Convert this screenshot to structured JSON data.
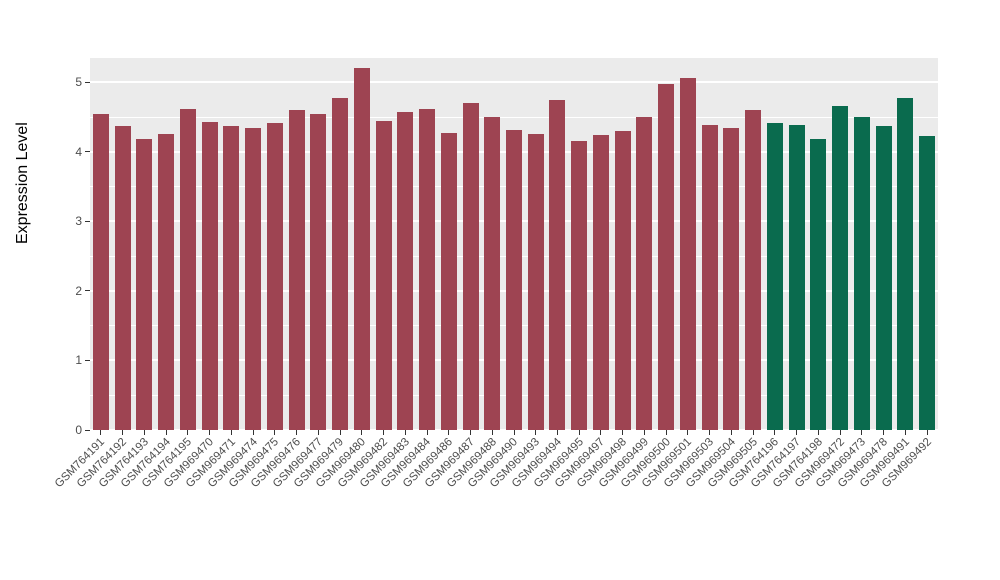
{
  "chart_data": {
    "type": "bar",
    "title": "",
    "xlabel": "",
    "ylabel": "Expression Level",
    "ylim": [
      0,
      5.35
    ],
    "yticks": [
      0,
      1,
      2,
      3,
      4,
      5
    ],
    "minor_ticks": [
      0.5,
      1.5,
      2.5,
      3.5,
      4.5
    ],
    "grid": "on",
    "legend_position": "none",
    "panel_background_color": "#EBEBEB",
    "gridline_color": "#FFFFFF",
    "group_colors": {
      "groupA": "#9E4452",
      "groupB": "#0A6B4E"
    },
    "categories": [
      "GSM764191",
      "GSM764192",
      "GSM764193",
      "GSM764194",
      "GSM764195",
      "GSM969470",
      "GSM969471",
      "GSM969474",
      "GSM969475",
      "GSM969476",
      "GSM969477",
      "GSM969479",
      "GSM969480",
      "GSM969482",
      "GSM969483",
      "GSM969484",
      "GSM969486",
      "GSM969487",
      "GSM969488",
      "GSM969490",
      "GSM969493",
      "GSM969494",
      "GSM969495",
      "GSM969497",
      "GSM969498",
      "GSM969499",
      "GSM969500",
      "GSM969501",
      "GSM969503",
      "GSM969504",
      "GSM969505",
      "GSM764196",
      "GSM764197",
      "GSM764198",
      "GSM969472",
      "GSM969473",
      "GSM969478",
      "GSM969491",
      "GSM969492"
    ],
    "values": [
      4.55,
      4.37,
      4.18,
      4.25,
      4.62,
      4.43,
      4.37,
      4.35,
      4.42,
      4.6,
      4.55,
      4.78,
      5.2,
      4.45,
      4.58,
      4.62,
      4.27,
      4.7,
      4.5,
      4.32,
      4.25,
      4.75,
      4.15,
      4.24,
      4.3,
      4.5,
      4.98,
      5.06,
      4.38,
      4.34,
      4.6,
      4.42,
      4.38,
      4.18,
      4.66,
      4.5,
      4.37,
      4.77,
      4.23
    ],
    "groups": [
      "groupA",
      "groupA",
      "groupA",
      "groupA",
      "groupA",
      "groupA",
      "groupA",
      "groupA",
      "groupA",
      "groupA",
      "groupA",
      "groupA",
      "groupA",
      "groupA",
      "groupA",
      "groupA",
      "groupA",
      "groupA",
      "groupA",
      "groupA",
      "groupA",
      "groupA",
      "groupA",
      "groupA",
      "groupA",
      "groupA",
      "groupA",
      "groupA",
      "groupA",
      "groupA",
      "groupA",
      "groupB",
      "groupB",
      "groupB",
      "groupB",
      "groupB",
      "groupB",
      "groupB",
      "groupB"
    ]
  }
}
